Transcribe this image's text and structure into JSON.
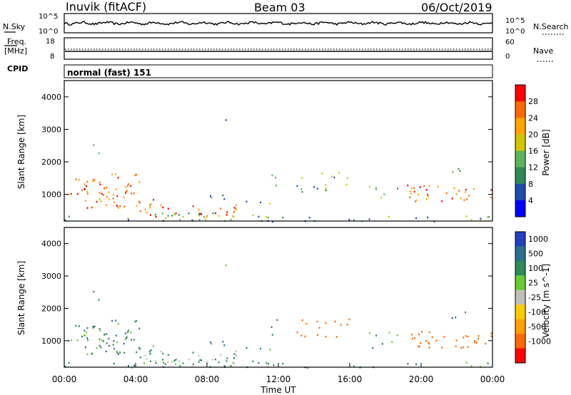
{
  "header": {
    "station_title": "Inuvik (fitACF)",
    "beam_label": "Beam 03",
    "date_label": "06/Oct/2019"
  },
  "status_panels": {
    "nsky_label": "N.Sky",
    "nsearch_label": "N.Search",
    "nsky_ticks": [
      "10^5",
      "10^0"
    ],
    "nsearch_ticks": [
      "10^5",
      "10^0"
    ],
    "freq_label_line1": "Freq.",
    "freq_label_line2": "[MHz]",
    "freq_ticks": [
      "18",
      "8"
    ],
    "nave_label": "Nave",
    "nave_ticks": [
      "60",
      "0"
    ],
    "cpid_label": "CPID",
    "cpid_value": "normal (fast) 151"
  },
  "chart_data": [
    {
      "type": "heatmap",
      "panel": "power",
      "ylabel": "Slant Range [km]",
      "xlim": [
        "00:00",
        "24:00"
      ],
      "ylim": [
        180,
        4500
      ],
      "y_ticks": [
        "1000",
        "2000",
        "3000",
        "4000"
      ],
      "colorbar_label": "Power [dB]",
      "colorbar_ticks": [
        "4",
        "8",
        "12",
        "16",
        "20",
        "24",
        "28"
      ],
      "colorbar_range": [
        0,
        32
      ],
      "colors": [
        "#0000ff",
        "#1f4da8",
        "#2e8b57",
        "#5ab55a",
        "#d4c400",
        "#ffa500",
        "#ff6a00",
        "#ff0000"
      ]
    },
    {
      "type": "heatmap",
      "panel": "velocity",
      "ylabel": "Slant Range [km]",
      "xlabel": "Time UT",
      "x_ticks": [
        "00:00",
        "04:00",
        "08:00",
        "12:00",
        "16:00",
        "20:00",
        "00:00"
      ],
      "xlim": [
        "00:00",
        "24:00"
      ],
      "ylim": [
        180,
        4500
      ],
      "y_ticks": [
        "1000",
        "2000",
        "3000",
        "4000"
      ],
      "colorbar_label": "Velocity [m s^-1]",
      "colorbar_ticks": [
        "1000",
        "500",
        "100",
        "25",
        "-25",
        "-100",
        "-500",
        "-1000"
      ],
      "colors": [
        "#2040c0",
        "#2e6e8e",
        "#2e8b57",
        "#66cc33",
        "#c0c0b8",
        "#ffcc00",
        "#ffa000",
        "#ff6a00",
        "#ff0000"
      ]
    }
  ]
}
